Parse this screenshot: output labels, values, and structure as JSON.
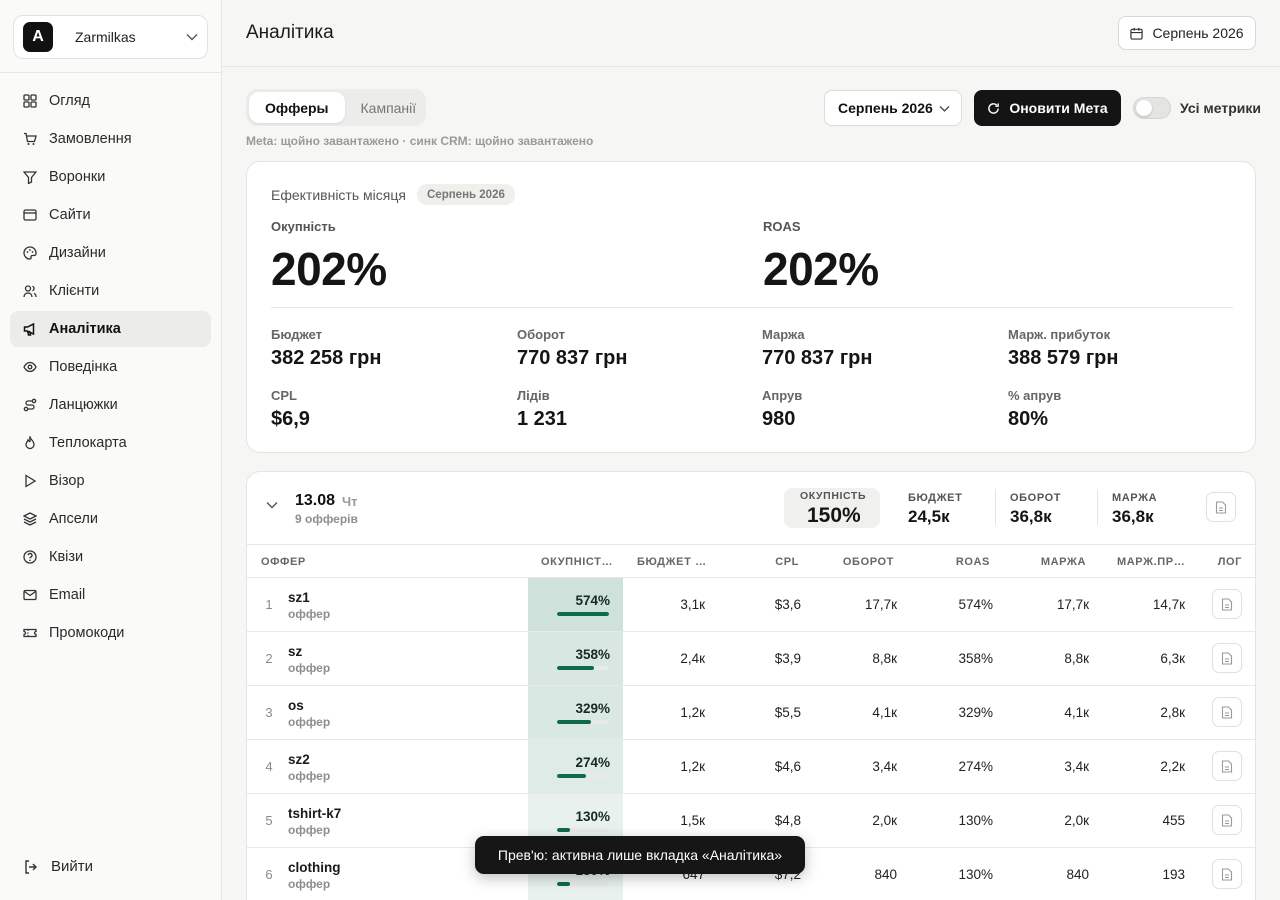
{
  "workspace": {
    "logo_letter": "A",
    "name": "Zarmilkas"
  },
  "sidebar": {
    "items": [
      {
        "label": "Огляд",
        "icon": "grid-icon"
      },
      {
        "label": "Замовлення",
        "icon": "cart-icon"
      },
      {
        "label": "Воронки",
        "icon": "funnel-icon"
      },
      {
        "label": "Сайти",
        "icon": "browser-icon"
      },
      {
        "label": "Дизайни",
        "icon": "palette-icon"
      },
      {
        "label": "Клієнти",
        "icon": "users-icon"
      },
      {
        "label": "Аналітика",
        "icon": "megaphone-icon",
        "active": true
      },
      {
        "label": "Поведінка",
        "icon": "eye-icon"
      },
      {
        "label": "Ланцюжки",
        "icon": "route-icon"
      },
      {
        "label": "Теплокарта",
        "icon": "flame-icon"
      },
      {
        "label": "Візор",
        "icon": "play-icon"
      },
      {
        "label": "Апсели",
        "icon": "layers-icon"
      },
      {
        "label": "Квізи",
        "icon": "question-icon"
      },
      {
        "label": "Email",
        "icon": "mail-icon"
      },
      {
        "label": "Промокоди",
        "icon": "ticket-icon"
      }
    ],
    "logout_label": "Вийти"
  },
  "header": {
    "title": "Аналітика",
    "date_button": "Серпень 2026"
  },
  "toolbar": {
    "tabs": [
      {
        "label": "Офферы",
        "active": true
      },
      {
        "label": "Кампанії",
        "active": false
      }
    ],
    "sync_status": "Meta: щойно завантажено · синк CRM: щойно завантажено",
    "month_select": "Серпень 2026",
    "refresh_label": "Оновити Мета",
    "toggle_label": "Усі метрики",
    "toggle_on": false
  },
  "summary": {
    "title": "Ефективність місяця",
    "badge": "Серпень 2026",
    "payback_label": "Окупність",
    "payback_value": "202%",
    "roas_label": "ROAS",
    "roas_value": "202%",
    "metrics": [
      {
        "label": "Бюджет",
        "value": "382 258 грн"
      },
      {
        "label": "Оборот",
        "value": "770 837 грн"
      },
      {
        "label": "Маржа",
        "value": "770 837 грн"
      },
      {
        "label": "Марж. прибуток",
        "value": "388 579 грн"
      },
      {
        "label": "CPL",
        "value": "$6,9"
      },
      {
        "label": "Лідів",
        "value": "1 231"
      },
      {
        "label": "Апрув",
        "value": "980"
      },
      {
        "label": "% апрув",
        "value": "80%"
      }
    ]
  },
  "day": {
    "date": "13.08",
    "weekday": "Чт",
    "count": "9 офферів",
    "kpis": {
      "payback_label": "ОКУПНІСТЬ",
      "payback_value": "150%",
      "budget_label": "БЮДЖЕТ",
      "budget_value": "24,5к",
      "turnover_label": "ОБОРОТ",
      "turnover_value": "36,8к",
      "margin_label": "МАРЖА",
      "margin_value": "36,8к"
    },
    "columns": [
      "ОФФЕР",
      "ОКУПНІСТ…",
      "БЮДЖЕТ …",
      "CPL",
      "ОБОРОТ",
      "ROAS",
      "МАРЖА",
      "МАРЖ.ПР…",
      "ЛОГ"
    ],
    "rows": [
      {
        "idx": "1",
        "name": "sz1",
        "sub": "оффер",
        "payback": "574%",
        "bar": 1.0,
        "budget": "3,1к",
        "cpl": "$3,6",
        "turnover": "17,7к",
        "roas": "574%",
        "margin": "17,7к",
        "profit": "14,7к"
      },
      {
        "idx": "2",
        "name": "sz",
        "sub": "оффер",
        "payback": "358%",
        "bar": 0.72,
        "budget": "2,4к",
        "cpl": "$3,9",
        "turnover": "8,8к",
        "roas": "358%",
        "margin": "8,8к",
        "profit": "6,3к"
      },
      {
        "idx": "3",
        "name": "os",
        "sub": "оффер",
        "payback": "329%",
        "bar": 0.66,
        "budget": "1,2к",
        "cpl": "$5,5",
        "turnover": "4,1к",
        "roas": "329%",
        "margin": "4,1к",
        "profit": "2,8к"
      },
      {
        "idx": "4",
        "name": "sz2",
        "sub": "оффер",
        "payback": "274%",
        "bar": 0.56,
        "budget": "1,2к",
        "cpl": "$4,6",
        "turnover": "3,4к",
        "roas": "274%",
        "margin": "3,4к",
        "profit": "2,2к"
      },
      {
        "idx": "5",
        "name": "tshirt-k7",
        "sub": "оффер",
        "payback": "130%",
        "bar": 0.25,
        "budget": "1,5к",
        "cpl": "$4,8",
        "turnover": "2,0к",
        "roas": "130%",
        "margin": "2,0к",
        "profit": "455"
      },
      {
        "idx": "6",
        "name": "clothing",
        "sub": "оффер",
        "payback": "130%",
        "bar": 0.25,
        "budget": "647",
        "cpl": "$7,2",
        "turnover": "840",
        "roas": "130%",
        "margin": "840",
        "profit": "193"
      }
    ]
  },
  "toast": "Прев'ю: активна лише вкладка «Аналітика»",
  "colors": {
    "accent": "#0f6a4c",
    "dark": "#141414"
  }
}
